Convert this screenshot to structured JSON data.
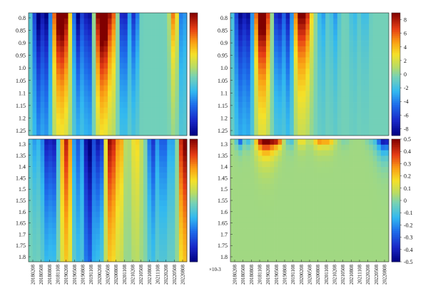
{
  "chart_data": [
    {
      "type": "heatmap",
      "panel": "top-left",
      "y_ticks": [
        "0.8",
        "0.85",
        "0.9",
        "0.95",
        "1.0",
        "1.05",
        "1.1",
        "1.15",
        "1.2",
        "1.25"
      ],
      "colorbar": {
        "range": [
          -8,
          8
        ],
        "ticks": [],
        "exponent": ""
      },
      "field": {
        "bands": [
          [
            0.06,
            0.7,
            2.0,
            -8
          ],
          [
            0.12,
            0.7,
            2.0,
            -8
          ],
          [
            0.18,
            0.9,
            1.6,
            8
          ],
          [
            0.23,
            0.9,
            1.7,
            8
          ],
          [
            0.31,
            0.7,
            1.5,
            -8
          ],
          [
            0.38,
            0.7,
            1.8,
            -8
          ],
          [
            0.45,
            0.9,
            1.6,
            8
          ],
          [
            0.49,
            0.9,
            1.5,
            8
          ],
          [
            0.54,
            0.6,
            1.5,
            4
          ],
          [
            0.6,
            0.7,
            1.5,
            -7
          ],
          [
            0.67,
            0.5,
            1.4,
            -6
          ],
          [
            0.92,
            0.6,
            1.2,
            6
          ],
          [
            0.97,
            0.6,
            1.6,
            -4
          ]
        ],
        "decay": 0.45,
        "baseline": -0.5
      }
    },
    {
      "type": "heatmap",
      "panel": "top-right",
      "y_ticks": [
        "0.8",
        "0.85",
        "0.9",
        "0.95",
        "1.0",
        "1.05",
        "1.1",
        "1.15",
        "1.2",
        "1.25"
      ],
      "colorbar": {
        "range": [
          -9,
          9
        ],
        "ticks": [
          "8",
          "6",
          "4",
          "2",
          "0",
          "-2",
          "-4",
          "-6",
          "-8"
        ],
        "exponent": ""
      },
      "field": {
        "bands": [
          [
            0.06,
            0.8,
            2.0,
            -8
          ],
          [
            0.12,
            0.7,
            2.0,
            -8
          ],
          [
            0.18,
            0.9,
            1.6,
            8
          ],
          [
            0.22,
            0.9,
            1.7,
            8
          ],
          [
            0.3,
            0.7,
            1.5,
            -8
          ],
          [
            0.37,
            0.7,
            1.8,
            -8
          ],
          [
            0.43,
            0.9,
            1.6,
            8
          ],
          [
            0.48,
            0.9,
            1.5,
            7
          ],
          [
            0.58,
            0.6,
            1.5,
            -3
          ],
          [
            0.66,
            0.6,
            1.5,
            -3
          ],
          [
            0.78,
            0.6,
            1.4,
            -2
          ],
          [
            0.85,
            0.6,
            1.2,
            -2
          ]
        ],
        "decay": 0.4,
        "baseline": -0.5
      }
    },
    {
      "type": "heatmap",
      "panel": "bottom-left",
      "y_ticks": [
        "1.3",
        "1.35",
        "1.4",
        "1.45",
        "1.5",
        "1.55",
        "1.6",
        "1.65",
        "1.7",
        "1.75",
        "1.8"
      ],
      "x_ticks": [
        "20180208",
        "20180508",
        "20180808",
        "20181108",
        "20190208",
        "20190508",
        "20190808",
        "20191108",
        "20200208",
        "20200508",
        "20200808",
        "20201108",
        "20210208",
        "20210508",
        "20210808",
        "20211108",
        "20220208",
        "20220508",
        "20220808"
      ],
      "colorbar": {
        "range": [
          -8,
          8
        ],
        "ticks": [],
        "exponent": ""
      },
      "field": {
        "bands": [
          [
            0.04,
            0.8,
            0.9,
            -3
          ],
          [
            0.11,
            0.6,
            1.2,
            -6
          ],
          [
            0.16,
            0.7,
            1.1,
            -7
          ],
          [
            0.24,
            0.9,
            1.7,
            7
          ],
          [
            0.3,
            0.6,
            1.4,
            -6
          ],
          [
            0.38,
            0.8,
            2.0,
            -9
          ],
          [
            0.45,
            0.6,
            1.0,
            -8
          ],
          [
            0.52,
            0.8,
            1.5,
            8
          ],
          [
            0.58,
            0.6,
            1.2,
            4
          ],
          [
            0.68,
            0.8,
            1.2,
            3
          ],
          [
            0.78,
            0.6,
            1.2,
            -6
          ],
          [
            0.85,
            0.8,
            1.1,
            -5
          ],
          [
            0.92,
            0.7,
            1.1,
            -3
          ],
          [
            0.98,
            0.8,
            1.4,
            9
          ]
        ],
        "decay": 0.75,
        "baseline": 0
      }
    },
    {
      "type": "heatmap",
      "panel": "bottom-right",
      "y_ticks": [
        "1.3",
        "1.35",
        "1.4",
        "1.45",
        "1.5",
        "1.55",
        "1.6",
        "1.65",
        "1.7",
        "1.75",
        "1.8"
      ],
      "x_ticks": [
        "20180208",
        "20180508",
        "20180808",
        "20181108",
        "20190208",
        "20190508",
        "20190808",
        "20191108",
        "20200208",
        "20200508",
        "20200808",
        "20201108",
        "20210208",
        "20210508",
        "20210808",
        "20211108",
        "20220208",
        "20220508",
        "20220808"
      ],
      "colorbar": {
        "range": [
          -0.5,
          0.5
        ],
        "ticks": [
          "0.5",
          "0.4",
          "0.3",
          "0.2",
          "0.1",
          "0",
          "-0.1",
          "-0.2",
          "-0.3",
          "-0.4",
          "-0.5"
        ],
        "exponent": "×10-3"
      },
      "field": {
        "bands": [
          [
            0.06,
            0.5,
            1.2,
            -0.45
          ],
          [
            0.12,
            0.5,
            1.0,
            -0.25
          ],
          [
            0.2,
            0.9,
            3.0,
            0.5
          ],
          [
            0.25,
            0.9,
            3.0,
            0.5
          ],
          [
            0.3,
            0.6,
            1.0,
            0.45
          ],
          [
            0.38,
            0.6,
            0.8,
            -0.2
          ],
          [
            0.45,
            0.7,
            1.0,
            0.2
          ],
          [
            0.56,
            0.8,
            1.5,
            0.35
          ],
          [
            0.62,
            0.8,
            1.4,
            0.3
          ],
          [
            0.72,
            0.7,
            1.2,
            -0.06
          ],
          [
            0.88,
            0.6,
            1.1,
            -0.07
          ],
          [
            0.94,
            0.9,
            3.0,
            -0.2
          ],
          [
            0.98,
            0.9,
            3.0,
            -0.5
          ]
        ],
        "decay": 0.03,
        "baseline": 0.03
      }
    }
  ]
}
